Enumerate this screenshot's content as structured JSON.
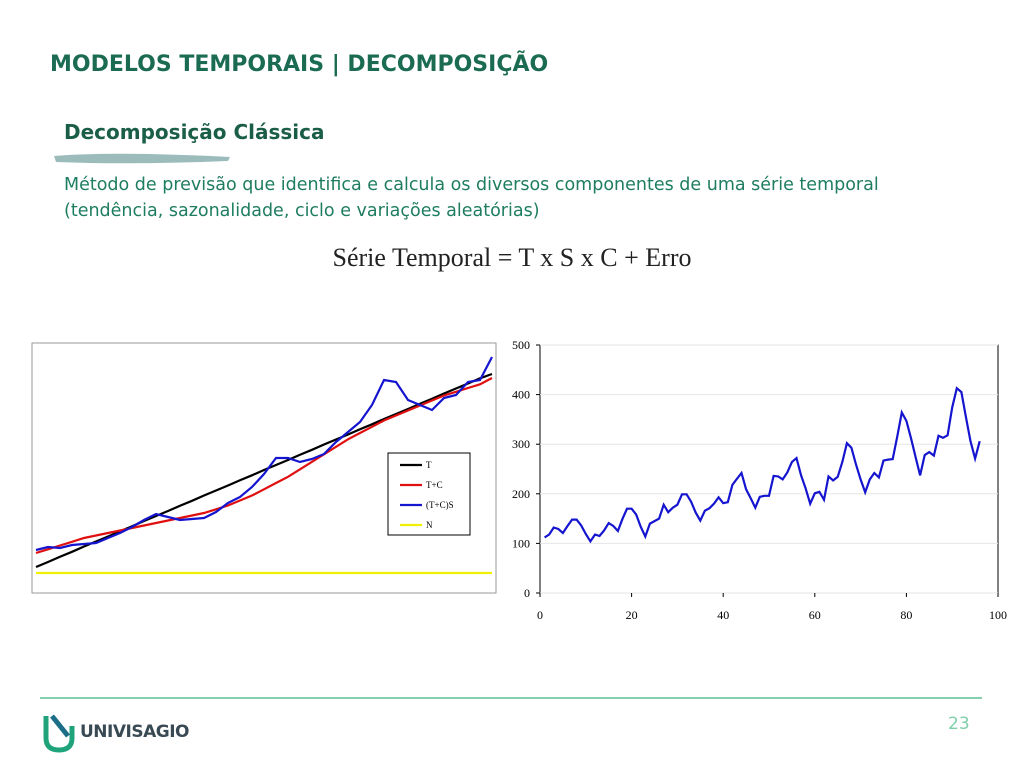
{
  "header": {
    "title": "MODELOS TEMPORAIS | DECOMPOSIÇÃO"
  },
  "section": {
    "title": "Decomposição Clássica",
    "text": "Método de previsão que identifica e calcula os diversos componentes de uma série temporal (tendência, sazonalidade, ciclo e variações aleatórias)",
    "formula": "Série Temporal = T x S x C + Erro"
  },
  "footer": {
    "brand": "UNIVISAGIO",
    "page": "23"
  },
  "chart_data": [
    {
      "type": "line",
      "ylim": [
        0,
        100
      ],
      "legend": "center-right",
      "series": [
        {
          "name": "T",
          "color": "#000000",
          "values": [
            10.4,
            12.4,
            14.5,
            16.5,
            18.6,
            20.6,
            22.6,
            24.7,
            26.7,
            28.8,
            30.8,
            32.8,
            34.9,
            36.9,
            39,
            41,
            43,
            45.1,
            47.1,
            49.2,
            51.2,
            53.2,
            55.3,
            57.3,
            59.4,
            61.4,
            63.4,
            65.5,
            67.5,
            69.6,
            71.6,
            73.6,
            75.7,
            77.7,
            79.8,
            81.8,
            83.8,
            85.9,
            87.6
          ]
        },
        {
          "name": "T+C",
          "color": "#e01010",
          "values": [
            16,
            17.5,
            19,
            20.5,
            22,
            23,
            24,
            25,
            26,
            27,
            28,
            29,
            30,
            31,
            32,
            33.5,
            35,
            37,
            39,
            41.5,
            44,
            46.5,
            49.5,
            52.5,
            55.5,
            58.5,
            61.5,
            64,
            66.5,
            69,
            71,
            73,
            75,
            77,
            79,
            80.5,
            82,
            83.5,
            86
          ]
        },
        {
          "name": "(T+C)S",
          "color": "#1515d0",
          "values": [
            17.2,
            18.4,
            18,
            19.2,
            19.6,
            20,
            22,
            24,
            26.4,
            29.2,
            31.6,
            30.4,
            29.2,
            29.6,
            30,
            32.4,
            36,
            38.4,
            42.4,
            47.6,
            54,
            54,
            52.4,
            53.6,
            55.6,
            60.4,
            64.4,
            68.4,
            75.2,
            85.2,
            84.4,
            77.2,
            75.2,
            73.2,
            78,
            79.2,
            84.4,
            85.2,
            94.4
          ]
        },
        {
          "name": "N",
          "color": "#f0f000",
          "values": [
            8,
            8,
            8,
            8,
            8,
            8,
            8,
            8,
            8,
            8,
            8,
            8,
            8,
            8,
            8,
            8,
            8,
            8,
            8,
            8,
            8,
            8,
            8,
            8,
            8,
            8,
            8,
            8,
            8,
            8,
            8,
            8,
            8,
            8,
            8,
            8,
            8,
            8,
            8
          ]
        }
      ]
    },
    {
      "type": "line",
      "xlim": [
        0,
        100
      ],
      "ylim": [
        0,
        500
      ],
      "xticks": [
        0,
        20,
        40,
        60,
        80,
        100
      ],
      "yticks": [
        0,
        100,
        200,
        300,
        400,
        500
      ],
      "grid": true,
      "x": [
        1,
        2,
        3,
        4,
        5,
        6,
        7,
        8,
        9,
        10,
        11,
        12,
        13,
        14,
        15,
        16,
        17,
        18,
        19,
        20,
        21,
        22,
        23,
        24,
        25,
        26,
        27,
        28,
        29,
        30,
        31,
        32,
        33,
        34,
        35,
        36,
        37,
        38,
        39,
        40,
        41,
        42,
        43,
        44,
        45,
        46,
        47,
        48,
        49,
        50,
        51,
        52,
        53,
        54,
        55,
        56,
        57,
        58,
        59,
        60,
        61,
        62,
        63,
        64,
        65,
        66,
        67,
        68,
        69,
        70,
        71,
        72,
        73,
        74,
        75,
        76,
        77,
        78,
        79,
        80,
        81,
        82,
        83,
        84,
        85,
        86,
        87,
        88,
        89,
        90,
        91,
        92,
        93,
        94,
        95,
        96
      ],
      "series": [
        {
          "color": "#1515d0",
          "values": [
            112,
            118,
            132,
            129,
            121,
            135,
            148,
            148,
            136,
            119,
            104,
            118,
            115,
            126,
            141,
            135,
            125,
            149,
            170,
            170,
            158,
            133,
            114,
            140,
            145,
            150,
            178,
            163,
            172,
            178,
            199,
            199,
            184,
            162,
            146,
            166,
            171,
            180,
            193,
            181,
            183,
            218,
            230,
            242,
            209,
            191,
            172,
            194,
            196,
            196,
            236,
            235,
            229,
            243,
            264,
            272,
            237,
            211,
            180,
            201,
            204,
            188,
            235,
            227,
            234,
            264,
            302,
            293,
            259,
            229,
            203,
            229,
            242,
            233,
            267,
            269,
            270,
            315,
            364,
            347,
            312,
            274,
            237,
            278,
            284,
            277,
            317,
            313,
            318,
            374,
            413,
            405,
            355,
            306,
            271,
            306
          ]
        }
      ]
    }
  ]
}
